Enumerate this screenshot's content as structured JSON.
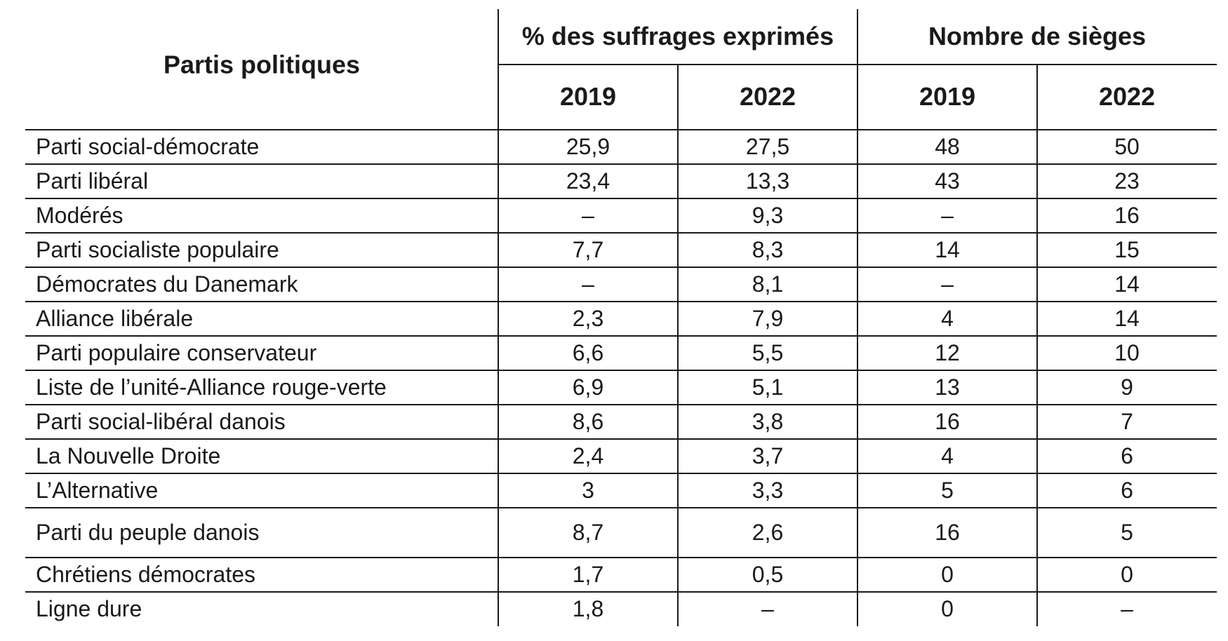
{
  "header": {
    "party_label": "Partis politiques",
    "groups": [
      "% des suffrages exprimés",
      "Nombre de sièges"
    ],
    "years": [
      "2019",
      "2022",
      "2019",
      "2022"
    ]
  },
  "table": {
    "rows": [
      [
        "Parti social-démocrate",
        "25,9",
        "27,5",
        "48",
        "50"
      ],
      [
        "Parti libéral",
        "23,4",
        "13,3",
        "43",
        "23"
      ],
      [
        "Modérés",
        "–",
        "9,3",
        "–",
        "16"
      ],
      [
        "Parti socialiste populaire",
        "7,7",
        "8,3",
        "14",
        "15"
      ],
      [
        "Démocrates du Danemark",
        "–",
        "8,1",
        "–",
        "14"
      ],
      [
        "Alliance libérale",
        "2,3",
        "7,9",
        "4",
        "14"
      ],
      [
        "Parti populaire conservateur",
        "6,6",
        "5,5",
        "12",
        "10"
      ],
      [
        "Liste de l’unité-Alliance rouge-verte",
        "6,9",
        "5,1",
        "13",
        "9"
      ],
      [
        "Parti social-libéral danois",
        "8,6",
        "3,8",
        "16",
        "7"
      ],
      [
        "La Nouvelle Droite",
        "2,4",
        "3,7",
        "4",
        "6"
      ],
      [
        "L’Alternative",
        "3",
        "3,3",
        "5",
        "6"
      ],
      [
        "Parti du peuple danois",
        "8,7",
        "2,6",
        "16",
        "5"
      ],
      [
        "Chrétiens démocrates",
        "1,7",
        "0,5",
        "0",
        "0"
      ],
      [
        "Ligne dure",
        "1,8",
        "–",
        "0",
        "–"
      ]
    ]
  }
}
